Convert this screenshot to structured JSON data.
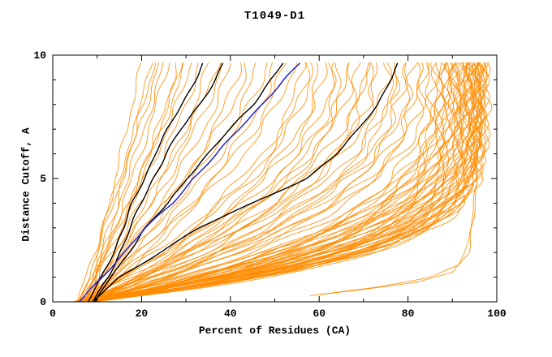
{
  "chart_data": {
    "type": "line",
    "title": "T1049-D1",
    "xlabel": "Percent of Residues (CA)",
    "ylabel": "Distance Cutoff, A",
    "xlim": [
      0,
      100
    ],
    "ylim": [
      0,
      10
    ],
    "x_major_ticks": [
      0,
      20,
      40,
      60,
      80,
      100
    ],
    "x_minor_ticks": [
      10,
      30,
      50,
      70,
      90
    ],
    "y_major_ticks": [
      0,
      5,
      10
    ],
    "y_minor_ticks": [
      1,
      2,
      3,
      4,
      6,
      7,
      8,
      9
    ],
    "y_data_top": 9.7,
    "legend": "none",
    "grid": false,
    "colors": {
      "background": "#ffffff",
      "axis": "#000000",
      "ensemble": "#ff8c00",
      "highlight_black": "#000000",
      "highlight_blue": "#2222cc"
    },
    "ensemble_curves_note": "each curve = [start_percent_at_cutoff0, percent_at_cutoff9.7, rise_shape_k]; x(y)=s+(e-s)*(1-(1-y/9.7)^k)",
    "ensemble_curves": [
      [
        5.1,
        85.2,
        3.0
      ],
      [
        6.3,
        85.9,
        3.1
      ],
      [
        7.6,
        86.4,
        3.1
      ],
      [
        8.8,
        86.8,
        3.2
      ],
      [
        4.7,
        87.3,
        3.2
      ],
      [
        5.9,
        87.7,
        3.3
      ],
      [
        7.2,
        88.1,
        3.3
      ],
      [
        8.4,
        88.5,
        3.4
      ],
      [
        4.9,
        88.9,
        3.4
      ],
      [
        6.1,
        89.3,
        3.5
      ],
      [
        7.4,
        89.6,
        3.5
      ],
      [
        8.6,
        90.0,
        3.6
      ],
      [
        5.3,
        90.3,
        3.7
      ],
      [
        6.5,
        90.6,
        3.7
      ],
      [
        7.8,
        90.9,
        3.8
      ],
      [
        9.0,
        91.2,
        3.8
      ],
      [
        4.6,
        91.5,
        3.9
      ],
      [
        5.8,
        91.8,
        4.0
      ],
      [
        7.1,
        92.1,
        4.0
      ],
      [
        8.3,
        92.4,
        4.1
      ],
      [
        5.0,
        92.6,
        4.1
      ],
      [
        6.2,
        92.9,
        4.2
      ],
      [
        7.5,
        93.1,
        4.3
      ],
      [
        8.7,
        93.4,
        4.3
      ],
      [
        4.8,
        93.6,
        4.4
      ],
      [
        6.0,
        93.8,
        4.4
      ],
      [
        7.3,
        94.0,
        4.5
      ],
      [
        8.5,
        94.3,
        4.6
      ],
      [
        5.2,
        94.5,
        4.6
      ],
      [
        6.4,
        94.7,
        4.7
      ],
      [
        7.7,
        94.9,
        4.7
      ],
      [
        8.9,
        95.1,
        4.8
      ],
      [
        4.5,
        95.3,
        4.9
      ],
      [
        5.7,
        95.5,
        4.9
      ],
      [
        7.0,
        95.7,
        5.0
      ],
      [
        8.2,
        95.9,
        5.0
      ],
      [
        5.4,
        96.0,
        5.1
      ],
      [
        6.6,
        96.2,
        5.1
      ],
      [
        7.9,
        96.3,
        5.2
      ],
      [
        9.1,
        96.5,
        5.2
      ],
      [
        4.9,
        96.6,
        5.3
      ],
      [
        6.1,
        96.7,
        5.3
      ],
      [
        7.4,
        96.8,
        5.4
      ],
      [
        8.6,
        96.9,
        5.4
      ],
      [
        5.5,
        97.0,
        5.5
      ],
      [
        6.7,
        96.4,
        4.8
      ],
      [
        8.0,
        95.8,
        4.5
      ],
      [
        9.2,
        94.2,
        4.2
      ],
      [
        5.6,
        93.0,
        4.0
      ],
      [
        6.8,
        91.0,
        3.6
      ],
      [
        6.0,
        56.0,
        1.8
      ],
      [
        7.2,
        58.0,
        1.85
      ],
      [
        8.4,
        60.0,
        1.9
      ],
      [
        4.8,
        61.0,
        1.95
      ],
      [
        6.1,
        63.0,
        2.0
      ],
      [
        7.3,
        64.0,
        2.0
      ],
      [
        8.5,
        66.0,
        2.05
      ],
      [
        5.0,
        67.0,
        2.1
      ],
      [
        6.2,
        69.0,
        2.15
      ],
      [
        7.4,
        70.0,
        2.2
      ],
      [
        8.6,
        72.0,
        2.2
      ],
      [
        5.1,
        73.0,
        2.25
      ],
      [
        6.3,
        75.0,
        2.3
      ],
      [
        7.5,
        76.0,
        2.35
      ],
      [
        8.7,
        78.0,
        2.4
      ],
      [
        5.2,
        79.0,
        2.45
      ],
      [
        6.4,
        80.0,
        2.5
      ],
      [
        7.6,
        81.0,
        2.55
      ],
      [
        8.8,
        82.0,
        2.6
      ],
      [
        5.3,
        83.0,
        2.65
      ],
      [
        6.5,
        84.0,
        2.7
      ],
      [
        7.7,
        57.0,
        1.8
      ],
      [
        8.9,
        65.0,
        2.05
      ],
      [
        5.4,
        71.0,
        2.2
      ],
      [
        6.6,
        77.0,
        2.4
      ],
      [
        7.8,
        20.0,
        1.0
      ],
      [
        9.0,
        22.0,
        1.05
      ],
      [
        5.5,
        23.0,
        1.05
      ],
      [
        6.7,
        25.0,
        1.1
      ],
      [
        7.9,
        26.0,
        1.1
      ],
      [
        9.1,
        28.0,
        1.15
      ],
      [
        5.6,
        30.0,
        1.15
      ],
      [
        6.8,
        31.0,
        1.2
      ],
      [
        8.0,
        33.0,
        1.2
      ],
      [
        9.2,
        35.0,
        1.25
      ],
      [
        5.7,
        37.0,
        1.25
      ],
      [
        6.9,
        38.0,
        1.3
      ],
      [
        8.1,
        40.0,
        1.3
      ],
      [
        9.3,
        42.0,
        1.35
      ],
      [
        5.8,
        44.0,
        1.35
      ],
      [
        7.0,
        46.0,
        1.4
      ],
      [
        8.2,
        48.0,
        1.4
      ],
      [
        9.4,
        50.0,
        1.45
      ],
      [
        5.9,
        52.0,
        1.5
      ],
      [
        7.1,
        54.0,
        1.5
      ],
      [
        6.0,
        24.0,
        1.05
      ],
      [
        7.2,
        29.0,
        1.15
      ]
    ],
    "hook_curves": [
      {
        "name": "low-rmsd-outlier-1",
        "y": [
          0.25,
          0.5,
          0.8,
          1.2,
          2.0,
          3.0,
          5.0,
          7.0,
          9.7
        ],
        "x": [
          58,
          70,
          82,
          90,
          93.5,
          94.5,
          95.2,
          95.8,
          96.3
        ]
      },
      {
        "name": "low-rmsd-outlier-2",
        "y": [
          0.3,
          0.6,
          1.0,
          1.5,
          2.5,
          4.0,
          6.0,
          8.0,
          9.7
        ],
        "x": [
          60,
          73,
          85,
          91.5,
          94.0,
          95.0,
          95.8,
          96.4,
          96.8
        ]
      }
    ],
    "highlight_y_grid": [
      0,
      1,
      2,
      3,
      4,
      5,
      6,
      7,
      8,
      9,
      9.7
    ],
    "highlight_curves": [
      {
        "name": "model-black-1",
        "color": "#000000",
        "width": 1.4,
        "x": [
          8.0,
          11.0,
          13.5,
          16.0,
          18.0,
          20.5,
          23.0,
          26.0,
          29.0,
          32.0,
          34.0
        ]
      },
      {
        "name": "model-black-2",
        "color": "#000000",
        "width": 1.4,
        "x": [
          9.0,
          12.5,
          15.0,
          17.5,
          20.0,
          22.5,
          25.5,
          29.0,
          33.0,
          36.5,
          38.5
        ]
      },
      {
        "name": "model-black-3",
        "color": "#000000",
        "width": 1.4,
        "x": [
          9.5,
          13.0,
          17.0,
          21.0,
          26.0,
          30.0,
          35.0,
          40.0,
          45.0,
          49.0,
          52.0
        ]
      },
      {
        "name": "model-black-4",
        "color": "#000000",
        "width": 1.4,
        "x": [
          9.0,
          15.0,
          24.0,
          33.0,
          45.0,
          57.0,
          64.0,
          69.0,
          73.0,
          76.0,
          78.0
        ]
      },
      {
        "name": "model-blue",
        "color": "#2222cc",
        "width": 1.5,
        "x": [
          6.0,
          11.0,
          16.0,
          21.0,
          27.0,
          31.5,
          37.0,
          42.0,
          47.0,
          52.0,
          56.0
        ]
      }
    ]
  }
}
